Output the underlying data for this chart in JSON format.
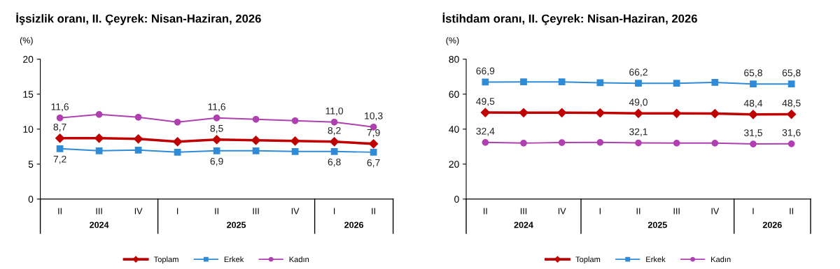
{
  "chart_data": [
    {
      "type": "line",
      "title": "İşsizlik oranı, II. Çeyrek: Nisan-Haziran, 2026",
      "ylabel": "(%)",
      "categories": [
        "II",
        "III",
        "IV",
        "I",
        "II",
        "III",
        "IV",
        "I",
        "II"
      ],
      "annotations": [
        "2024",
        "2025",
        "2026"
      ],
      "ylim": [
        0,
        20
      ],
      "yticks": [
        0,
        5,
        10,
        15,
        20
      ],
      "grid": false,
      "legend": "bottom",
      "series": [
        {
          "name": "Toplam",
          "color": "#c00000",
          "marker": "diamond",
          "values": [
            8.7,
            8.7,
            8.6,
            8.2,
            8.5,
            8.4,
            8.3,
            8.2,
            7.9
          ],
          "value_labels": [
            "8,7",
            null,
            null,
            null,
            "8,5",
            null,
            null,
            "8,2",
            "7,9"
          ]
        },
        {
          "name": "Erkek",
          "color": "#2e8bd8",
          "marker": "square",
          "values": [
            7.2,
            6.9,
            7.0,
            6.7,
            6.9,
            6.9,
            6.8,
            6.8,
            6.7
          ],
          "value_labels": [
            "7,2",
            null,
            null,
            null,
            "6,9",
            null,
            null,
            "6,8",
            "6,7"
          ]
        },
        {
          "name": "Kadın",
          "color": "#b040b0",
          "marker": "circle",
          "values": [
            11.6,
            12.1,
            11.7,
            11.0,
            11.6,
            11.4,
            11.2,
            11.0,
            10.3
          ],
          "value_labels": [
            "11,6",
            null,
            null,
            null,
            "11,6",
            null,
            null,
            "11,0",
            "10,3"
          ]
        }
      ]
    },
    {
      "type": "line",
      "title": "İstihdam oranı, II. Çeyrek: Nisan-Haziran, 2026",
      "ylabel": "(%)",
      "categories": [
        "II",
        "III",
        "IV",
        "I",
        "II",
        "III",
        "IV",
        "I",
        "II"
      ],
      "annotations": [
        "2024",
        "2025",
        "2026"
      ],
      "ylim": [
        0,
        80
      ],
      "yticks": [
        0,
        20,
        40,
        60,
        80
      ],
      "grid": false,
      "legend": "bottom",
      "series": [
        {
          "name": "Toplam",
          "color": "#c00000",
          "marker": "diamond",
          "values": [
            49.5,
            49.4,
            49.4,
            49.3,
            49.0,
            49.0,
            48.9,
            48.4,
            48.5
          ],
          "value_labels": [
            "49,5",
            null,
            null,
            null,
            "49,0",
            null,
            null,
            "48,4",
            "48,5"
          ]
        },
        {
          "name": "Erkek",
          "color": "#2e8bd8",
          "marker": "square",
          "values": [
            66.9,
            67.0,
            67.0,
            66.5,
            66.2,
            66.2,
            66.7,
            65.8,
            65.8
          ],
          "value_labels": [
            "66,9",
            null,
            null,
            null,
            "66,2",
            null,
            null,
            "65,8",
            "65,8"
          ]
        },
        {
          "name": "Kadın",
          "color": "#b040b0",
          "marker": "circle",
          "values": [
            32.4,
            32.0,
            32.3,
            32.4,
            32.1,
            32.0,
            32.0,
            31.5,
            31.6
          ],
          "value_labels": [
            "32,4",
            null,
            null,
            null,
            "32,1",
            null,
            null,
            "31,5",
            "31,6"
          ]
        }
      ]
    }
  ]
}
